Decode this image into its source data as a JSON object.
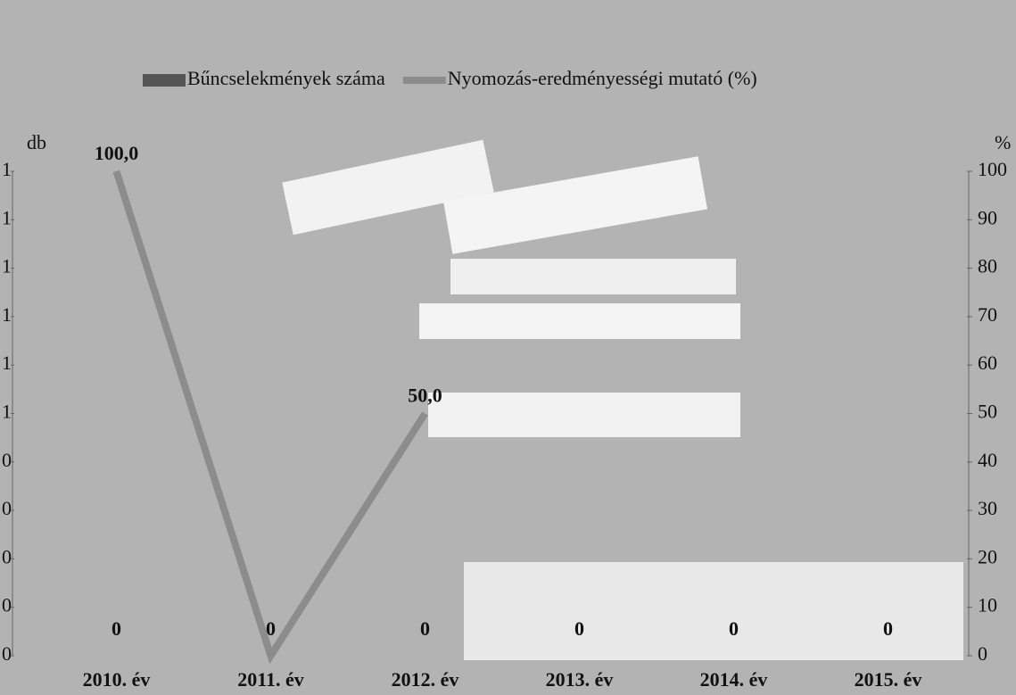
{
  "chart_data": {
    "type": "bar",
    "categories": [
      "2010. év",
      "2011. év",
      "2012. év",
      "2013. év",
      "2014. év",
      "2015. év"
    ],
    "series": [
      {
        "name": "Bűncselekmények száma",
        "type": "bar",
        "color": "#555555",
        "values": [
          0,
          0,
          0,
          0,
          0,
          0
        ]
      },
      {
        "name": "Nyomozás-eredményességi mutató (%)",
        "type": "line",
        "axis": "y2",
        "color": "#8c8c8c",
        "values": [
          100,
          0,
          50,
          null,
          null,
          null
        ],
        "value_labels": [
          "100,0",
          null,
          "50,0",
          null,
          null,
          null
        ]
      }
    ],
    "ylabel": "db",
    "y2label": "%",
    "ylim": [
      0,
      1
    ],
    "yticks": [
      {
        "value": 0,
        "label": "0"
      },
      {
        "value": 0.1,
        "label": "0"
      },
      {
        "value": 0.2,
        "label": "0"
      },
      {
        "value": 0.3,
        "label": "0"
      },
      {
        "value": 0.4,
        "label": "0"
      },
      {
        "value": 0.5,
        "label": "1"
      },
      {
        "value": 0.6,
        "label": "1"
      },
      {
        "value": 0.7,
        "label": "1"
      },
      {
        "value": 0.8,
        "label": "1"
      },
      {
        "value": 0.9,
        "label": "1"
      },
      {
        "value": 1,
        "label": "1"
      }
    ],
    "y2lim": [
      0,
      100
    ],
    "y2ticks": [
      0,
      10,
      20,
      30,
      40,
      50,
      60,
      70,
      80,
      90,
      100
    ],
    "legend": "top"
  }
}
